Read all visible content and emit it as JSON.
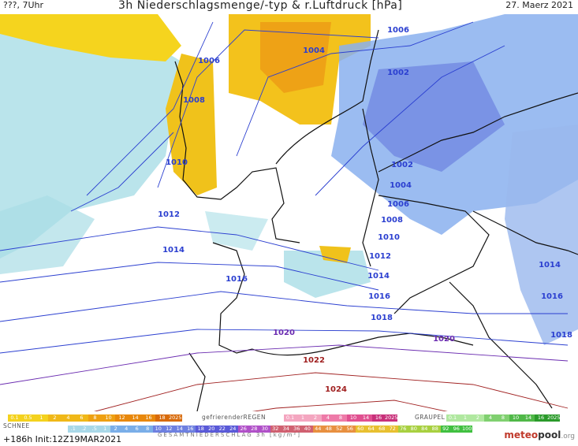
{
  "header": {
    "left": "???, 7Uhr",
    "title": "3h Niederschlagsmenge/-typ & r.Luftdruck [hPa]",
    "date": "27. Maerz 2021"
  },
  "isobars": [
    {
      "label": "1002",
      "color": "#2b3fd0",
      "points": [
        [
          400,
          230
        ],
        [
          460,
          168
        ],
        [
          560,
          80
        ],
        [
          640,
          40
        ]
      ],
      "labels": [
        [
          505,
          91
        ],
        [
          510,
          208
        ]
      ]
    },
    {
      "label": "1004",
      "color": "#2b3fd0",
      "points": [
        [
          300,
          180
        ],
        [
          340,
          80
        ],
        [
          420,
          50
        ],
        [
          520,
          40
        ],
        [
          600,
          10
        ]
      ],
      "labels": [
        [
          398,
          63
        ],
        [
          508,
          234
        ]
      ]
    },
    {
      "label": "1006",
      "color": "#2b3fd0",
      "points": [
        [
          200,
          220
        ],
        [
          250,
          80
        ],
        [
          310,
          20
        ],
        [
          480,
          30
        ]
      ],
      "labels": [
        [
          265,
          76
        ],
        [
          505,
          37
        ],
        [
          505,
          258
        ]
      ]
    },
    {
      "label": "1008",
      "color": "#2b3fd0",
      "points": [
        [
          110,
          230
        ],
        [
          220,
          120
        ],
        [
          270,
          10
        ]
      ],
      "labels": [
        [
          246,
          126
        ],
        [
          497,
          278
        ]
      ]
    },
    {
      "label": "1010",
      "color": "#2b3fd0",
      "points": [
        [
          90,
          250
        ],
        [
          150,
          220
        ],
        [
          220,
          150
        ]
      ],
      "labels": [
        [
          224,
          205
        ],
        [
          493,
          300
        ]
      ]
    },
    {
      "label": "1012",
      "color": "#2b3fd0",
      "points": [
        [
          0,
          300
        ],
        [
          200,
          270
        ],
        [
          300,
          280
        ],
        [
          480,
          325
        ]
      ],
      "labels": [
        [
          214,
          271
        ],
        [
          482,
          324
        ]
      ]
    },
    {
      "label": "1014",
      "color": "#2b3fd0",
      "points": [
        [
          0,
          340
        ],
        [
          200,
          315
        ],
        [
          350,
          320
        ],
        [
          480,
          350
        ]
      ],
      "labels": [
        [
          220,
          316
        ],
        [
          480,
          349
        ],
        [
          697,
          335
        ]
      ]
    },
    {
      "label": "1016",
      "color": "#2b3fd0",
      "points": [
        [
          0,
          390
        ],
        [
          280,
          352
        ],
        [
          440,
          370
        ],
        [
          600,
          380
        ],
        [
          720,
          380
        ]
      ],
      "labels": [
        [
          300,
          353
        ],
        [
          481,
          375
        ],
        [
          700,
          375
        ]
      ]
    },
    {
      "label": "1018",
      "color": "#2b3fd0",
      "points": [
        [
          0,
          430
        ],
        [
          250,
          400
        ],
        [
          480,
          402
        ],
        [
          720,
          420
        ]
      ],
      "labels": [
        [
          484,
          402
        ],
        [
          712,
          424
        ]
      ]
    },
    {
      "label": "1020",
      "color": "#6a2bb0",
      "points": [
        [
          0,
          470
        ],
        [
          250,
          430
        ],
        [
          430,
          420
        ],
        [
          720,
          440
        ]
      ],
      "labels": [
        [
          360,
          421
        ],
        [
          563,
          429
        ]
      ]
    },
    {
      "label": "1022",
      "color": "#a02020",
      "points": [
        [
          60,
          520
        ],
        [
          250,
          470
        ],
        [
          400,
          455
        ],
        [
          600,
          470
        ],
        [
          720,
          500
        ]
      ],
      "labels": [
        [
          398,
          456
        ]
      ]
    },
    {
      "label": "1024",
      "color": "#a02020",
      "points": [
        [
          200,
          522
        ],
        [
          350,
          500
        ],
        [
          500,
          490
        ],
        [
          650,
          522
        ]
      ],
      "labels": [
        [
          426,
          493
        ]
      ]
    }
  ],
  "legend": {
    "rain_values": [
      "0.1",
      "0.5",
      "1",
      "2",
      "4",
      "6",
      "8",
      "10",
      "12",
      "14",
      "16",
      "18",
      "2025+"
    ],
    "freezing_label": "gefrierenderREGEN",
    "freezing_values": [
      "0.1",
      "1",
      "2",
      "4",
      "8",
      "10",
      "14",
      "16",
      "2025+"
    ],
    "graupel_label": "GRAUPEL",
    "graupel_values": [
      "0.1",
      "1",
      "2",
      "4",
      "8",
      "10",
      "14",
      "16",
      "2025+"
    ],
    "snow_label": "SCHNEE",
    "snow_values": [
      ".1",
      ".2",
      ".5",
      "1",
      "2",
      "4",
      "6",
      "8",
      "10",
      "12",
      "14",
      "16",
      "18",
      "20",
      "22",
      "24",
      "26",
      "28",
      "30",
      "32",
      "34",
      "36",
      "40",
      "44",
      "48",
      "52",
      "56",
      "60",
      "64",
      "68",
      "72",
      "76",
      "80",
      "84",
      "88",
      "92",
      "96",
      "100"
    ],
    "total_label": "GESAMTNIEDERSCHLAG 3h [kg/m²]",
    "colors_rain": [
      "#f4d21e",
      "#f0b818",
      "#eea012",
      "#e8880c"
    ],
    "colors_snow": [
      "#a8d8e8",
      "#7aaee8",
      "#6e80e0",
      "#5a5ad8"
    ]
  },
  "footer": {
    "run": "+186h  Init:12Z19MAR2021",
    "logo_main": "meteo",
    "logo_pool": "pool",
    "logo_org": ".org"
  }
}
